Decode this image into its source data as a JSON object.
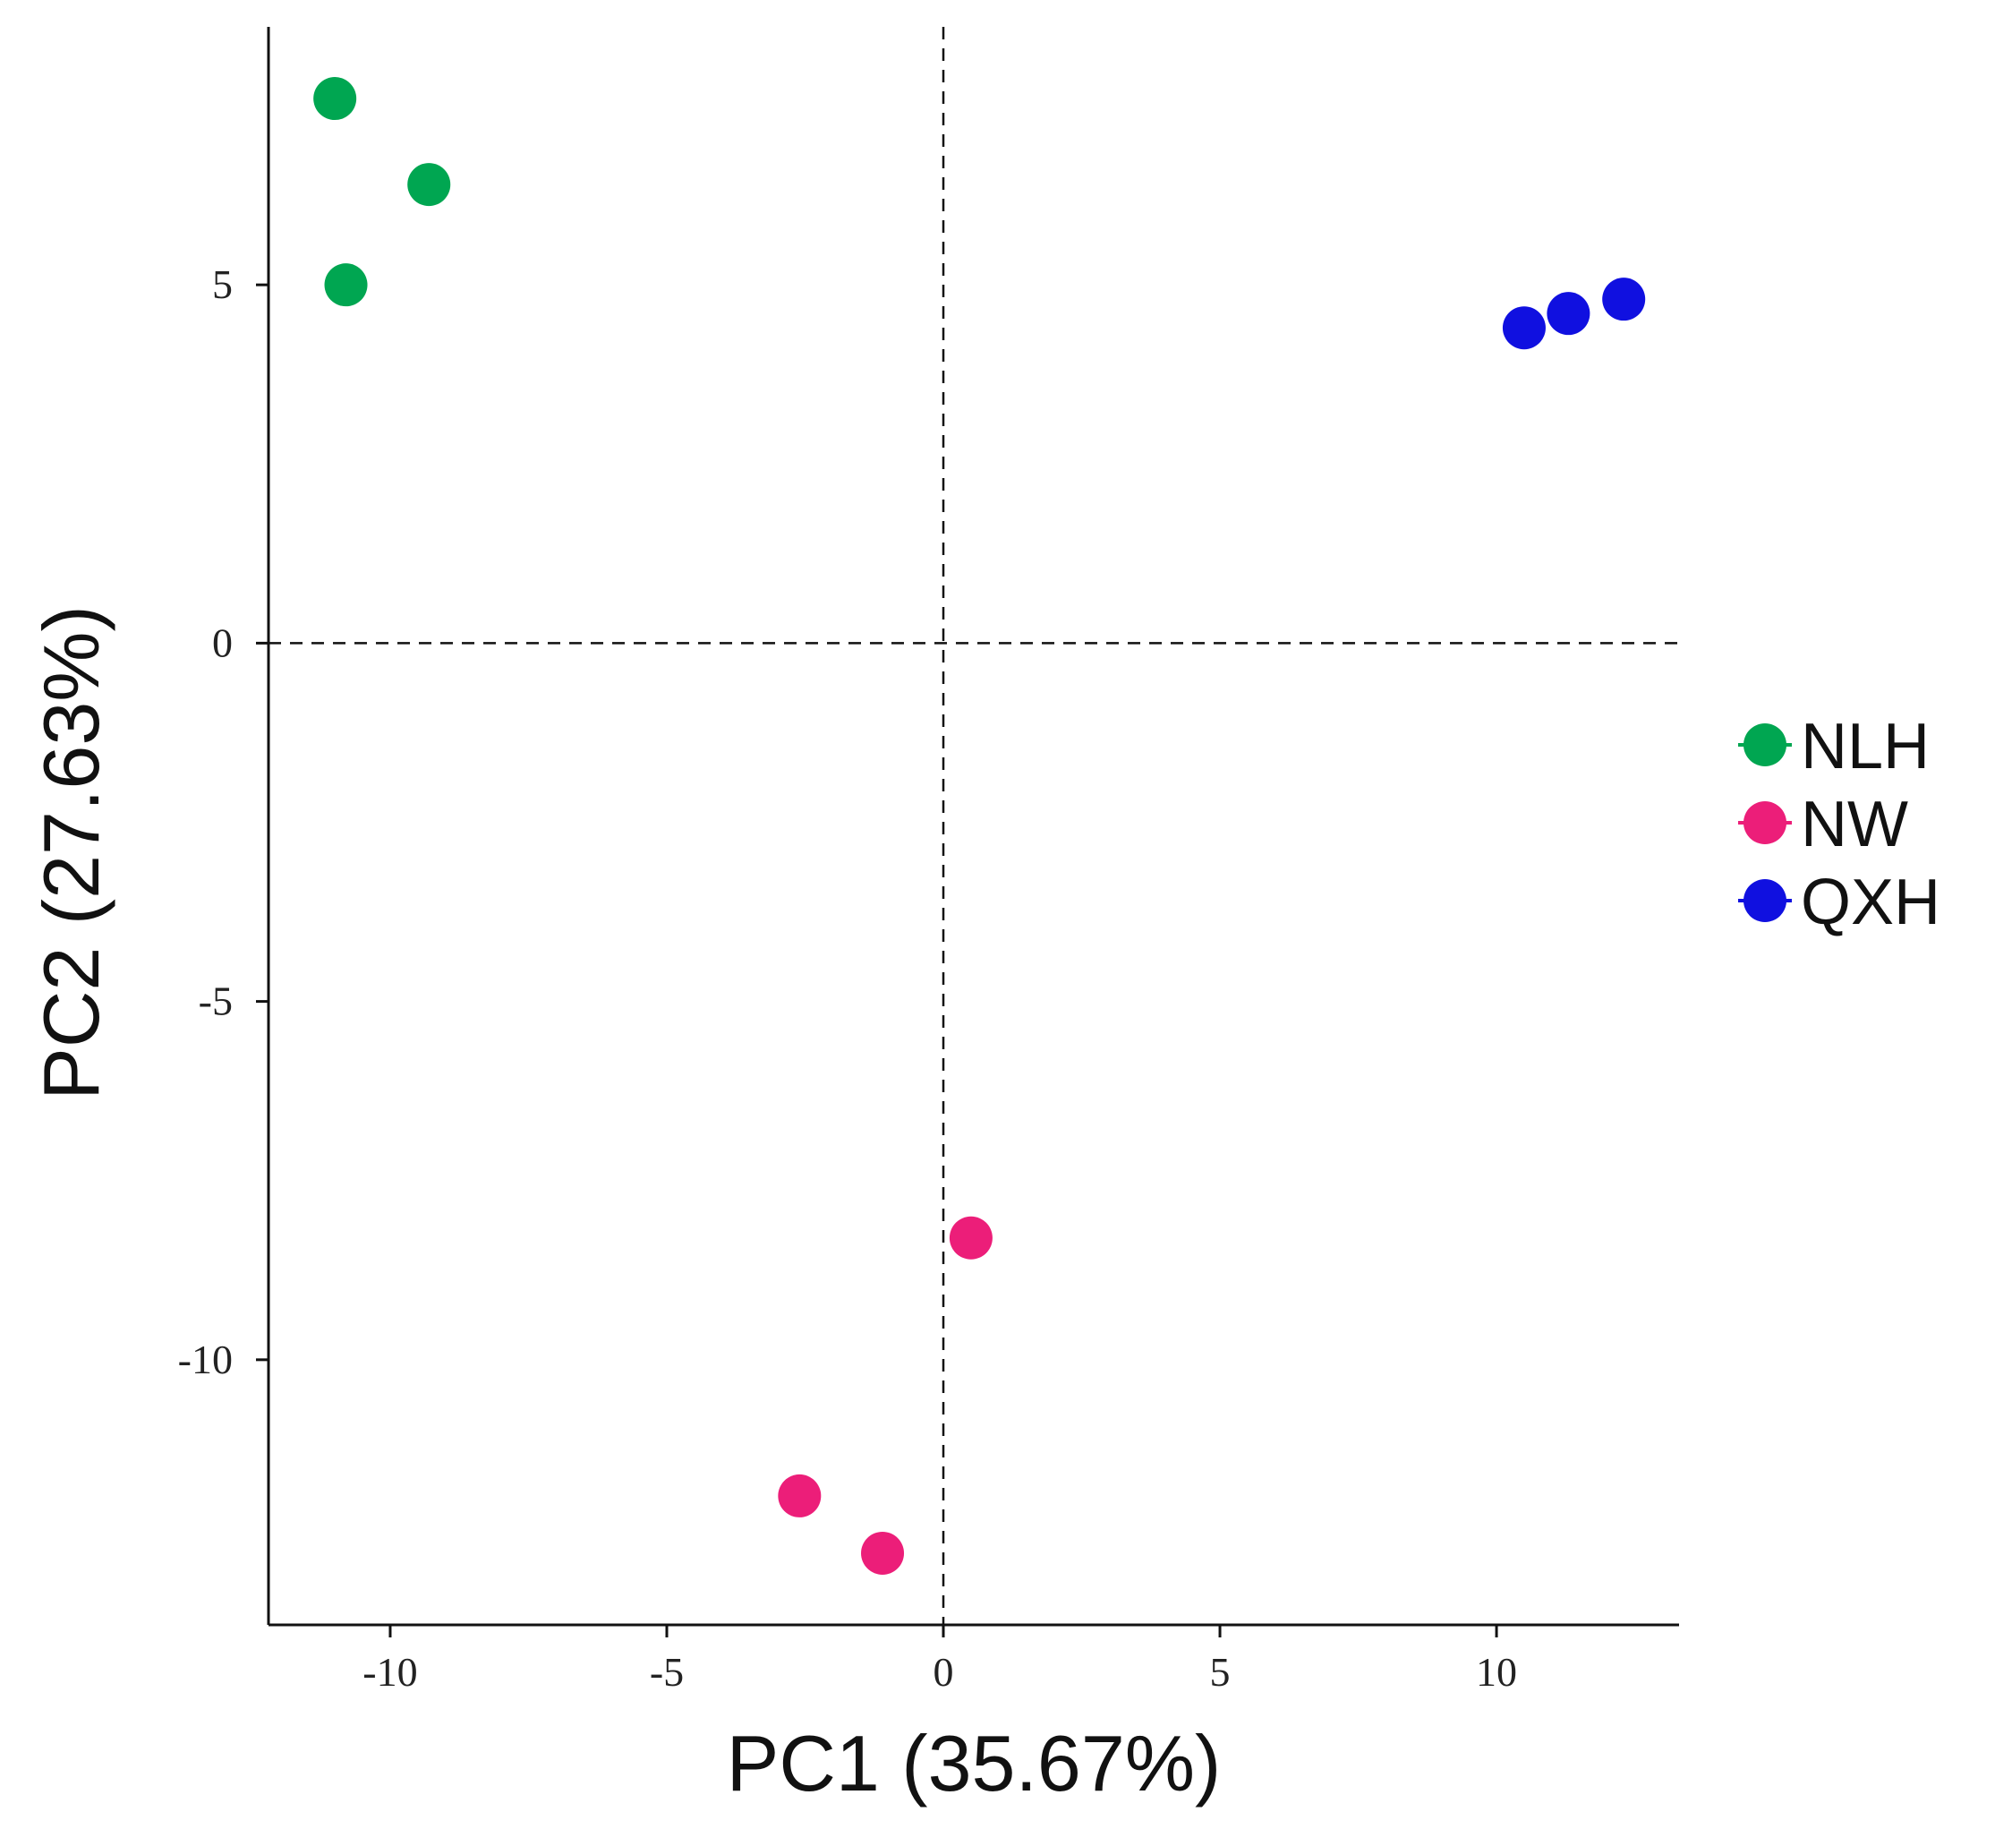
{
  "chart_data": {
    "type": "scatter",
    "title": "",
    "xlabel": "PC1 (35.67%)",
    "ylabel": "PC2 (27.63%)",
    "xlim": [
      -12.2,
      13.3
    ],
    "ylim": [
      -13.7,
      8.6
    ],
    "xticks": [
      -10,
      -5,
      0,
      5,
      10
    ],
    "yticks": [
      5,
      0,
      -5,
      -10
    ],
    "xtick_labels": [
      "-10",
      "-5",
      "0",
      "5",
      "10"
    ],
    "ytick_labels": [
      "5",
      "0",
      "-5",
      "-10"
    ],
    "grid": false,
    "reference_lines": {
      "x": 0,
      "y": 0,
      "style": "dashed"
    },
    "legend_position": "right",
    "series": [
      {
        "name": "NLH",
        "color": "#00A651",
        "points": [
          {
            "x": -11.0,
            "y": 7.6
          },
          {
            "x": -9.3,
            "y": 6.4
          },
          {
            "x": -10.8,
            "y": 5.0
          }
        ]
      },
      {
        "name": "NW",
        "color": "#EC1E79",
        "points": [
          {
            "x": 0.5,
            "y": -8.3
          },
          {
            "x": -2.6,
            "y": -11.9
          },
          {
            "x": -1.1,
            "y": -12.7
          }
        ]
      },
      {
        "name": "QXH",
        "color": "#1010E0",
        "points": [
          {
            "x": 10.5,
            "y": 4.4
          },
          {
            "x": 11.3,
            "y": 4.6
          },
          {
            "x": 12.3,
            "y": 4.8
          }
        ]
      }
    ]
  }
}
